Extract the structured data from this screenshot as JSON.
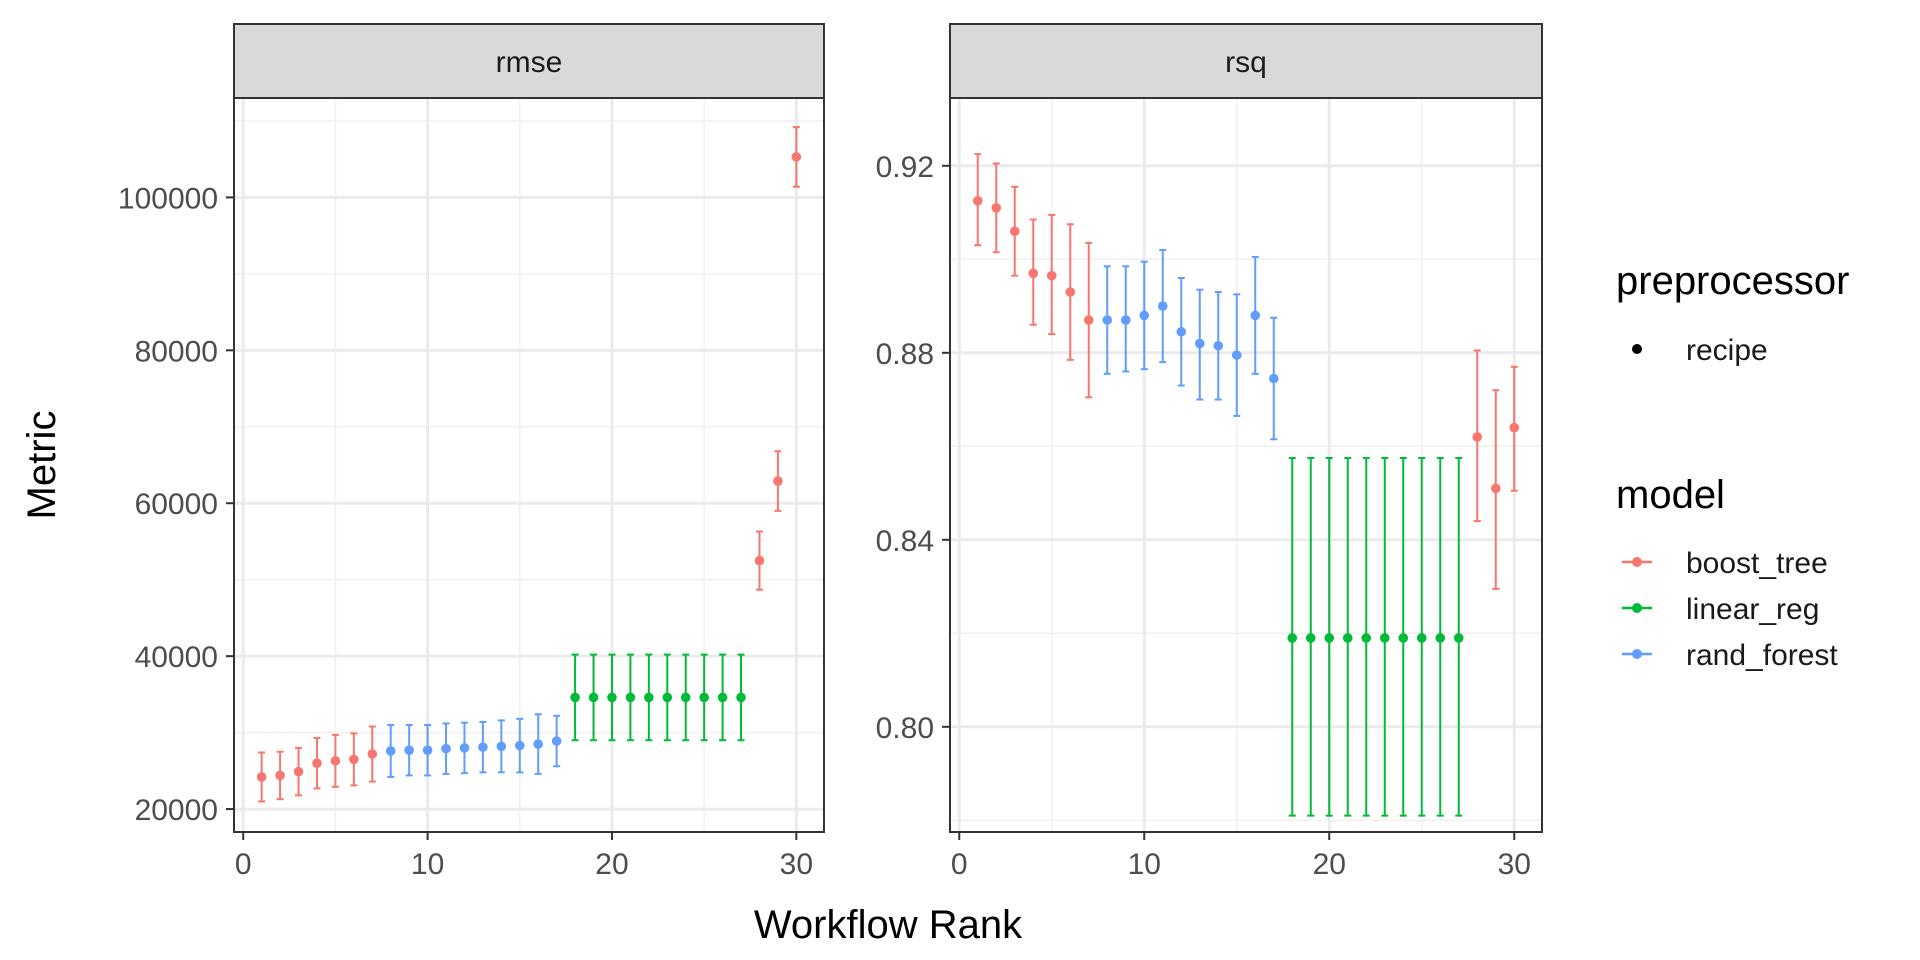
{
  "chart_data": {
    "type": "scatter",
    "error_bars": true,
    "facet_strips": true,
    "xlabel": "Workflow Rank",
    "ylabel": "Metric",
    "x_ticks": [
      0,
      10,
      20,
      30
    ],
    "xlim": [
      -0.5,
      31.5
    ],
    "legend": {
      "placement": "right",
      "groups": [
        {
          "title": "preprocessor",
          "entries": [
            {
              "label": "recipe",
              "color": "#000000",
              "kind": "point"
            }
          ]
        },
        {
          "title": "model",
          "entries": [
            {
              "label": "boost_tree",
              "color": "#F8766D",
              "kind": "pointrange"
            },
            {
              "label": "linear_reg",
              "color": "#00BA38",
              "kind": "pointrange"
            },
            {
              "label": "rand_forest",
              "color": "#619CFF",
              "kind": "pointrange"
            }
          ]
        }
      ]
    },
    "colors": {
      "boost_tree": "#F8766D",
      "linear_reg": "#00BA38",
      "rand_forest": "#619CFF"
    },
    "panels": [
      {
        "name": "rmse",
        "ylim": [
          17000,
          113000
        ],
        "y_ticks": [
          20000,
          40000,
          60000,
          80000,
          100000
        ],
        "y_tick_labels": [
          "20000",
          "40000",
          "60000",
          "80000",
          "100000"
        ],
        "points": [
          {
            "x": 1,
            "y": 24200,
            "lo": 21000,
            "hi": 27400,
            "model": "boost_tree"
          },
          {
            "x": 2,
            "y": 24400,
            "lo": 21300,
            "hi": 27500,
            "model": "boost_tree"
          },
          {
            "x": 3,
            "y": 24900,
            "lo": 21800,
            "hi": 28000,
            "model": "boost_tree"
          },
          {
            "x": 4,
            "y": 26000,
            "lo": 22700,
            "hi": 29300,
            "model": "boost_tree"
          },
          {
            "x": 5,
            "y": 26300,
            "lo": 22900,
            "hi": 29700,
            "model": "boost_tree"
          },
          {
            "x": 6,
            "y": 26500,
            "lo": 23100,
            "hi": 29900,
            "model": "boost_tree"
          },
          {
            "x": 7,
            "y": 27200,
            "lo": 23600,
            "hi": 30800,
            "model": "boost_tree"
          },
          {
            "x": 8,
            "y": 27600,
            "lo": 24200,
            "hi": 31000,
            "model": "rand_forest"
          },
          {
            "x": 9,
            "y": 27700,
            "lo": 24400,
            "hi": 31000,
            "model": "rand_forest"
          },
          {
            "x": 10,
            "y": 27700,
            "lo": 24400,
            "hi": 31000,
            "model": "rand_forest"
          },
          {
            "x": 11,
            "y": 27900,
            "lo": 24600,
            "hi": 31200,
            "model": "rand_forest"
          },
          {
            "x": 12,
            "y": 28000,
            "lo": 24700,
            "hi": 31300,
            "model": "rand_forest"
          },
          {
            "x": 13,
            "y": 28100,
            "lo": 24800,
            "hi": 31400,
            "model": "rand_forest"
          },
          {
            "x": 14,
            "y": 28200,
            "lo": 24800,
            "hi": 31600,
            "model": "rand_forest"
          },
          {
            "x": 15,
            "y": 28300,
            "lo": 24800,
            "hi": 31800,
            "model": "rand_forest"
          },
          {
            "x": 16,
            "y": 28500,
            "lo": 24600,
            "hi": 32400,
            "model": "rand_forest"
          },
          {
            "x": 17,
            "y": 28900,
            "lo": 25600,
            "hi": 32200,
            "model": "rand_forest"
          },
          {
            "x": 18,
            "y": 34600,
            "lo": 29000,
            "hi": 40200,
            "model": "linear_reg"
          },
          {
            "x": 19,
            "y": 34600,
            "lo": 29000,
            "hi": 40200,
            "model": "linear_reg"
          },
          {
            "x": 20,
            "y": 34600,
            "lo": 29000,
            "hi": 40200,
            "model": "linear_reg"
          },
          {
            "x": 21,
            "y": 34600,
            "lo": 29000,
            "hi": 40200,
            "model": "linear_reg"
          },
          {
            "x": 22,
            "y": 34600,
            "lo": 29000,
            "hi": 40200,
            "model": "linear_reg"
          },
          {
            "x": 23,
            "y": 34600,
            "lo": 29000,
            "hi": 40200,
            "model": "linear_reg"
          },
          {
            "x": 24,
            "y": 34600,
            "lo": 29000,
            "hi": 40200,
            "model": "linear_reg"
          },
          {
            "x": 25,
            "y": 34600,
            "lo": 29000,
            "hi": 40200,
            "model": "linear_reg"
          },
          {
            "x": 26,
            "y": 34600,
            "lo": 29000,
            "hi": 40200,
            "model": "linear_reg"
          },
          {
            "x": 27,
            "y": 34600,
            "lo": 29000,
            "hi": 40200,
            "model": "linear_reg"
          },
          {
            "x": 28,
            "y": 52500,
            "lo": 48700,
            "hi": 56300,
            "model": "boost_tree"
          },
          {
            "x": 29,
            "y": 62900,
            "lo": 59000,
            "hi": 66800,
            "model": "boost_tree"
          },
          {
            "x": 30,
            "y": 105300,
            "lo": 101400,
            "hi": 109200,
            "model": "boost_tree"
          }
        ]
      },
      {
        "name": "rsq",
        "ylim": [
          0.7775,
          0.9345
        ],
        "y_ticks": [
          0.8,
          0.84,
          0.88,
          0.92
        ],
        "y_tick_labels": [
          "0.80",
          "0.84",
          "0.88",
          "0.92"
        ],
        "points": [
          {
            "x": 1,
            "y": 0.9125,
            "lo": 0.903,
            "hi": 0.9225,
            "model": "boost_tree"
          },
          {
            "x": 2,
            "y": 0.911,
            "lo": 0.9015,
            "hi": 0.9205,
            "model": "boost_tree"
          },
          {
            "x": 3,
            "y": 0.906,
            "lo": 0.8965,
            "hi": 0.9155,
            "model": "boost_tree"
          },
          {
            "x": 4,
            "y": 0.897,
            "lo": 0.886,
            "hi": 0.9085,
            "model": "boost_tree"
          },
          {
            "x": 5,
            "y": 0.8965,
            "lo": 0.884,
            "hi": 0.9095,
            "model": "boost_tree"
          },
          {
            "x": 6,
            "y": 0.893,
            "lo": 0.8785,
            "hi": 0.9075,
            "model": "boost_tree"
          },
          {
            "x": 7,
            "y": 0.887,
            "lo": 0.8705,
            "hi": 0.9035,
            "model": "boost_tree"
          },
          {
            "x": 8,
            "y": 0.887,
            "lo": 0.8755,
            "hi": 0.8985,
            "model": "rand_forest"
          },
          {
            "x": 9,
            "y": 0.887,
            "lo": 0.876,
            "hi": 0.8985,
            "model": "rand_forest"
          },
          {
            "x": 10,
            "y": 0.888,
            "lo": 0.8765,
            "hi": 0.8995,
            "model": "rand_forest"
          },
          {
            "x": 11,
            "y": 0.89,
            "lo": 0.878,
            "hi": 0.902,
            "model": "rand_forest"
          },
          {
            "x": 12,
            "y": 0.8845,
            "lo": 0.873,
            "hi": 0.896,
            "model": "rand_forest"
          },
          {
            "x": 13,
            "y": 0.882,
            "lo": 0.87,
            "hi": 0.8935,
            "model": "rand_forest"
          },
          {
            "x": 14,
            "y": 0.8815,
            "lo": 0.87,
            "hi": 0.893,
            "model": "rand_forest"
          },
          {
            "x": 15,
            "y": 0.8795,
            "lo": 0.8665,
            "hi": 0.8925,
            "model": "rand_forest"
          },
          {
            "x": 16,
            "y": 0.888,
            "lo": 0.8755,
            "hi": 0.9005,
            "model": "rand_forest"
          },
          {
            "x": 17,
            "y": 0.8745,
            "lo": 0.8615,
            "hi": 0.8875,
            "model": "rand_forest"
          },
          {
            "x": 18,
            "y": 0.819,
            "lo": 0.781,
            "hi": 0.8575,
            "model": "linear_reg"
          },
          {
            "x": 19,
            "y": 0.819,
            "lo": 0.781,
            "hi": 0.8575,
            "model": "linear_reg"
          },
          {
            "x": 20,
            "y": 0.819,
            "lo": 0.781,
            "hi": 0.8575,
            "model": "linear_reg"
          },
          {
            "x": 21,
            "y": 0.819,
            "lo": 0.781,
            "hi": 0.8575,
            "model": "linear_reg"
          },
          {
            "x": 22,
            "y": 0.819,
            "lo": 0.781,
            "hi": 0.8575,
            "model": "linear_reg"
          },
          {
            "x": 23,
            "y": 0.819,
            "lo": 0.781,
            "hi": 0.8575,
            "model": "linear_reg"
          },
          {
            "x": 24,
            "y": 0.819,
            "lo": 0.781,
            "hi": 0.8575,
            "model": "linear_reg"
          },
          {
            "x": 25,
            "y": 0.819,
            "lo": 0.781,
            "hi": 0.8575,
            "model": "linear_reg"
          },
          {
            "x": 26,
            "y": 0.819,
            "lo": 0.781,
            "hi": 0.8575,
            "model": "linear_reg"
          },
          {
            "x": 27,
            "y": 0.819,
            "lo": 0.781,
            "hi": 0.8575,
            "model": "linear_reg"
          },
          {
            "x": 28,
            "y": 0.862,
            "lo": 0.844,
            "hi": 0.8805,
            "model": "boost_tree"
          },
          {
            "x": 29,
            "y": 0.851,
            "lo": 0.8295,
            "hi": 0.872,
            "model": "boost_tree"
          },
          {
            "x": 30,
            "y": 0.864,
            "lo": 0.8505,
            "hi": 0.877,
            "model": "boost_tree"
          }
        ]
      }
    ]
  }
}
